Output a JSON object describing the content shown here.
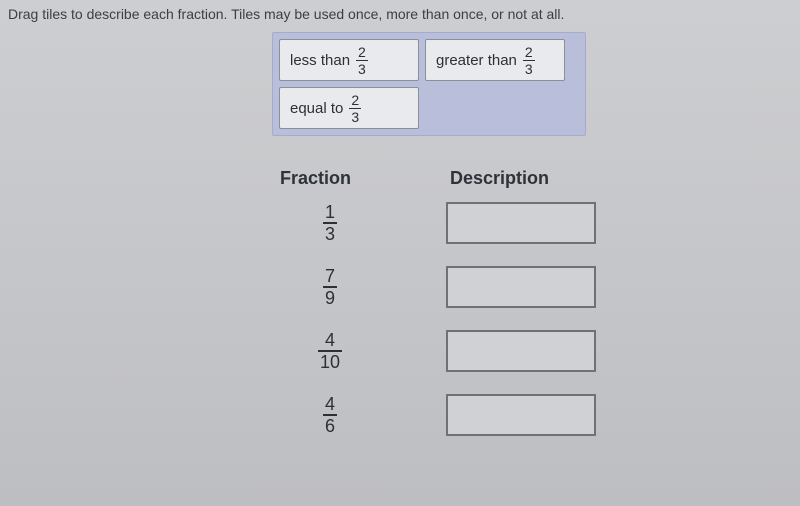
{
  "instructions": "Drag tiles to describe each fraction. Tiles may be used once, more than once, or not at all.",
  "reference_fraction": {
    "numerator": "2",
    "denominator": "3"
  },
  "tiles": [
    {
      "label": "less than",
      "numerator": "2",
      "denominator": "3"
    },
    {
      "label": "greater than",
      "numerator": "2",
      "denominator": "3"
    },
    {
      "label": "equal to",
      "numerator": "2",
      "denominator": "3"
    }
  ],
  "columns": {
    "fraction": "Fraction",
    "description": "Description"
  },
  "rows": [
    {
      "numerator": "1",
      "denominator": "3"
    },
    {
      "numerator": "7",
      "denominator": "9"
    },
    {
      "numerator": "4",
      "denominator": "10"
    },
    {
      "numerator": "4",
      "denominator": "6"
    }
  ],
  "style": {
    "page_bg": "#c8c9cb",
    "tray_bg": "#b9bedb",
    "tile_bg": "#e9eaee",
    "tile_border": "#8d8f98",
    "slot_border": "#6f7078",
    "text_color": "#30323a"
  }
}
